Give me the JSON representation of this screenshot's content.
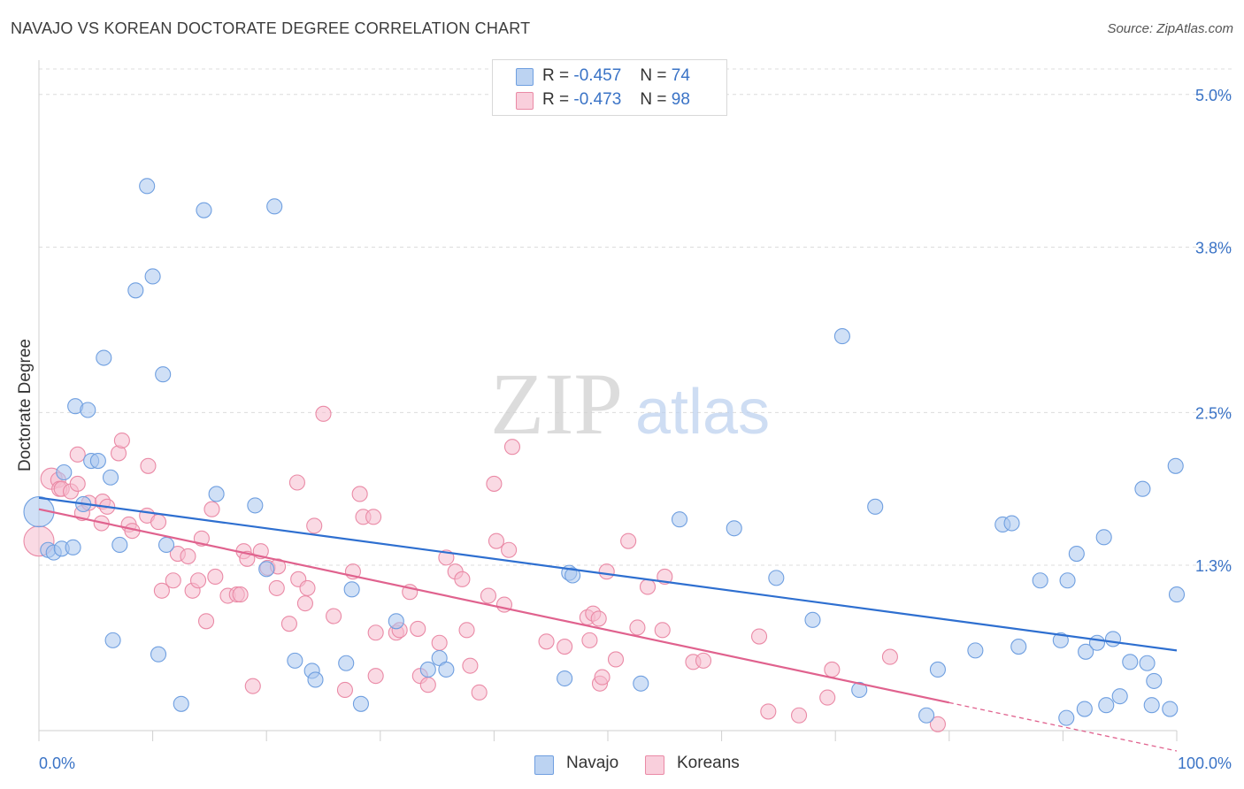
{
  "title": "NAVAJO VS KOREAN DOCTORATE DEGREE CORRELATION CHART",
  "source": "Source: ZipAtlas.com",
  "watermark": {
    "zip": "ZIP",
    "atlas": "atlas"
  },
  "legend": {
    "rows": [
      {
        "r_label": "R =",
        "r_value": "-0.457",
        "n_label": "N =",
        "n_value": "74"
      },
      {
        "r_label": "R =",
        "r_value": "-0.473",
        "n_label": "N =",
        "n_value": "98"
      }
    ],
    "bottom": [
      {
        "label": "Navajo"
      },
      {
        "label": "Koreans"
      }
    ]
  },
  "colors": {
    "navajo_fill": "#a9c7ef",
    "navajo_stroke": "#6f9fe0",
    "navajo_line": "#2e6fd0",
    "korean_fill": "#f6bccd",
    "korean_stroke": "#ea8aa6",
    "korean_line": "#e0628e",
    "axis_label": "#3a73c6",
    "grid": "#dcdcdc"
  },
  "chart_data": {
    "type": "scatter",
    "ylabel": "Doctorate Degree",
    "xlim": [
      0,
      100
    ],
    "ylim": [
      0,
      5.2
    ],
    "x_tick_labels": [
      "0.0%",
      "100.0%"
    ],
    "y_ticks": [
      1.3,
      2.5,
      3.8,
      5.0
    ],
    "y_tick_labels": [
      "1.3%",
      "2.5%",
      "3.8%",
      "5.0%"
    ],
    "grid": "horizontal dashed",
    "legend_position": "top-center",
    "series": [
      {
        "name": "Navajo",
        "trend": {
          "x": [
            0,
            100
          ],
          "y": [
            1.83,
            0.63
          ]
        },
        "points": [
          [
            0.0,
            1.72,
            "L"
          ],
          [
            0.8,
            1.42
          ],
          [
            1.3,
            1.4
          ],
          [
            2.0,
            1.43
          ],
          [
            3.0,
            1.44
          ],
          [
            2.2,
            2.03
          ],
          [
            3.2,
            2.55
          ],
          [
            4.3,
            2.52
          ],
          [
            4.6,
            2.12
          ],
          [
            5.2,
            2.12
          ],
          [
            5.7,
            2.93
          ],
          [
            3.9,
            1.78
          ],
          [
            6.3,
            1.99
          ],
          [
            7.1,
            1.46
          ],
          [
            6.5,
            0.71
          ],
          [
            8.5,
            3.46
          ],
          [
            9.5,
            4.28
          ],
          [
            10.0,
            3.57
          ],
          [
            10.5,
            0.6
          ],
          [
            10.9,
            2.8
          ],
          [
            11.2,
            1.46
          ],
          [
            12.5,
            0.21
          ],
          [
            14.5,
            4.09
          ],
          [
            15.6,
            1.86
          ],
          [
            19.0,
            1.77
          ],
          [
            20.0,
            1.27
          ],
          [
            20.7,
            4.12
          ],
          [
            22.5,
            0.55
          ],
          [
            24.0,
            0.47
          ],
          [
            24.3,
            0.4
          ],
          [
            27.0,
            0.53
          ],
          [
            27.5,
            1.11
          ],
          [
            28.3,
            0.21
          ],
          [
            31.4,
            0.86
          ],
          [
            34.2,
            0.48
          ],
          [
            35.2,
            0.57
          ],
          [
            35.8,
            0.48
          ],
          [
            46.2,
            0.41
          ],
          [
            46.6,
            1.24
          ],
          [
            46.9,
            1.22
          ],
          [
            52.9,
            0.37
          ],
          [
            56.3,
            1.66
          ],
          [
            61.1,
            1.59
          ],
          [
            64.8,
            1.2
          ],
          [
            68.0,
            0.87
          ],
          [
            70.6,
            3.1
          ],
          [
            72.1,
            0.32
          ],
          [
            73.5,
            1.76
          ],
          [
            78.0,
            0.12
          ],
          [
            79.0,
            0.48
          ],
          [
            82.3,
            0.63
          ],
          [
            84.7,
            1.62
          ],
          [
            85.5,
            1.63
          ],
          [
            86.1,
            0.66
          ],
          [
            88.0,
            1.18
          ],
          [
            89.8,
            0.71
          ],
          [
            90.3,
            0.1
          ],
          [
            90.4,
            1.18
          ],
          [
            91.2,
            1.39
          ],
          [
            91.9,
            0.17
          ],
          [
            92.0,
            0.62
          ],
          [
            93.0,
            0.69
          ],
          [
            93.6,
            1.52
          ],
          [
            93.8,
            0.2
          ],
          [
            94.4,
            0.72
          ],
          [
            95.0,
            0.27
          ],
          [
            95.9,
            0.54
          ],
          [
            97.0,
            1.9
          ],
          [
            97.4,
            0.53
          ],
          [
            97.8,
            0.2
          ],
          [
            98.0,
            0.39
          ],
          [
            99.4,
            0.17
          ],
          [
            99.9,
            2.08
          ],
          [
            100.0,
            1.07
          ]
        ]
      },
      {
        "name": "Koreans",
        "trend": {
          "x": [
            0,
            80
          ],
          "y": [
            1.74,
            0.22
          ]
        },
        "trend_dashed": {
          "x": [
            80,
            100
          ],
          "y": [
            0.22,
            -0.16
          ]
        },
        "points": [
          [
            0.0,
            1.49,
            "L"
          ],
          [
            1.1,
            1.98,
            "M"
          ],
          [
            1.7,
            1.97
          ],
          [
            1.8,
            1.9
          ],
          [
            2.0,
            1.9
          ],
          [
            2.8,
            1.88
          ],
          [
            3.4,
            1.94
          ],
          [
            3.4,
            2.17
          ],
          [
            3.8,
            1.71
          ],
          [
            4.4,
            1.79
          ],
          [
            5.5,
            1.63
          ],
          [
            5.6,
            1.8
          ],
          [
            6.0,
            1.76
          ],
          [
            7.0,
            2.18
          ],
          [
            7.3,
            2.28
          ],
          [
            7.9,
            1.62
          ],
          [
            8.2,
            1.57
          ],
          [
            9.5,
            1.69
          ],
          [
            9.6,
            2.08
          ],
          [
            10.5,
            1.64
          ],
          [
            10.8,
            1.1
          ],
          [
            11.8,
            1.18
          ],
          [
            12.2,
            1.39
          ],
          [
            13.1,
            1.37
          ],
          [
            13.5,
            1.1
          ],
          [
            14.0,
            1.18
          ],
          [
            14.3,
            1.51
          ],
          [
            14.7,
            0.86
          ],
          [
            15.2,
            1.74
          ],
          [
            15.5,
            1.21
          ],
          [
            16.6,
            1.06
          ],
          [
            17.4,
            1.07
          ],
          [
            17.7,
            1.07
          ],
          [
            18.0,
            1.41
          ],
          [
            18.3,
            1.35
          ],
          [
            18.8,
            0.35
          ],
          [
            19.5,
            1.41
          ],
          [
            20.1,
            1.28
          ],
          [
            20.9,
            1.12
          ],
          [
            21.0,
            1.29
          ],
          [
            22.0,
            0.84
          ],
          [
            22.7,
            1.95
          ],
          [
            22.8,
            1.19
          ],
          [
            23.4,
            1.0
          ],
          [
            23.6,
            1.12
          ],
          [
            24.2,
            1.61
          ],
          [
            25.0,
            2.49
          ],
          [
            25.9,
            0.9
          ],
          [
            26.9,
            0.32
          ],
          [
            27.6,
            1.25
          ],
          [
            28.2,
            1.86
          ],
          [
            28.5,
            1.68
          ],
          [
            29.4,
            1.68
          ],
          [
            29.6,
            0.43
          ],
          [
            29.6,
            0.77
          ],
          [
            31.4,
            0.77
          ],
          [
            31.7,
            0.79
          ],
          [
            32.6,
            1.09
          ],
          [
            33.3,
            0.8
          ],
          [
            33.5,
            0.43
          ],
          [
            34.2,
            0.36
          ],
          [
            35.2,
            0.69
          ],
          [
            35.8,
            1.36
          ],
          [
            36.6,
            1.25
          ],
          [
            37.2,
            1.19
          ],
          [
            37.6,
            0.79
          ],
          [
            37.9,
            0.51
          ],
          [
            38.7,
            0.3
          ],
          [
            39.5,
            1.06
          ],
          [
            40.0,
            1.94
          ],
          [
            40.2,
            1.49
          ],
          [
            40.9,
            0.99
          ],
          [
            41.3,
            1.42
          ],
          [
            41.6,
            2.23
          ],
          [
            44.6,
            0.7
          ],
          [
            46.2,
            0.66
          ],
          [
            48.2,
            0.89
          ],
          [
            48.4,
            0.71
          ],
          [
            48.7,
            0.92
          ],
          [
            49.2,
            0.88
          ],
          [
            49.3,
            0.37
          ],
          [
            49.5,
            0.42
          ],
          [
            49.9,
            1.25
          ],
          [
            50.7,
            0.56
          ],
          [
            51.8,
            1.49
          ],
          [
            52.6,
            0.81
          ],
          [
            53.5,
            1.13
          ],
          [
            54.8,
            0.79
          ],
          [
            55.0,
            1.21
          ],
          [
            57.5,
            0.54
          ],
          [
            58.4,
            0.55
          ],
          [
            63.3,
            0.74
          ],
          [
            64.1,
            0.15
          ],
          [
            66.8,
            0.12
          ],
          [
            69.3,
            0.26
          ],
          [
            69.7,
            0.48
          ],
          [
            74.8,
            0.58
          ],
          [
            79.0,
            0.05
          ]
        ]
      }
    ]
  }
}
